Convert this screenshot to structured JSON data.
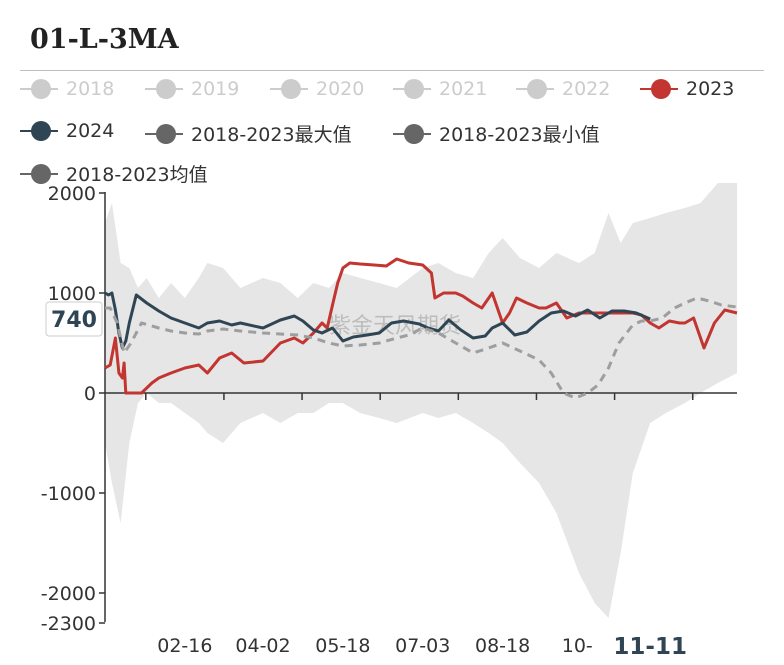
{
  "title": "01-L-3MA",
  "legend": [
    {
      "label": "2018",
      "color": "#cccccc",
      "active": false
    },
    {
      "label": "2019",
      "color": "#cccccc",
      "active": false
    },
    {
      "label": "2020",
      "color": "#cccccc",
      "active": false
    },
    {
      "label": "2021",
      "color": "#cccccc",
      "active": false
    },
    {
      "label": "2022",
      "color": "#cccccc",
      "active": false
    },
    {
      "label": "2023",
      "color": "#c23531",
      "active": true
    },
    {
      "label": "2024",
      "color": "#2f4554",
      "active": true
    },
    {
      "label": "2018-2023最大值",
      "color": "#666666",
      "active": true
    },
    {
      "label": "2018-2023最小值",
      "color": "#666666",
      "active": true
    },
    {
      "label": "2018-2023均值",
      "color": "#666666",
      "active": true
    }
  ],
  "watermark": "紫金天风期货",
  "chart_data": {
    "type": "line",
    "title": "01-L-3MA",
    "ylim": [
      -2300,
      2000
    ],
    "y_ticks": [
      "2000",
      "1000",
      "0",
      "-1000",
      "-2000",
      "-2300"
    ],
    "x_ticks": [
      "02-16",
      "04-02",
      "05-18",
      "07-03",
      "08-18",
      "10-"
    ],
    "x_range": [
      "01-01",
      "12-31"
    ],
    "highlight_x": "11-11",
    "pointer_value": "740",
    "band": {
      "name": "2018-2023最大值 / 2018-2023最小值",
      "color": "#e6e6e6",
      "x": [
        "01-01",
        "01-05",
        "01-10",
        "01-15",
        "01-20",
        "01-25",
        "02-01",
        "02-08",
        "02-16",
        "02-24",
        "03-01",
        "03-10",
        "03-20",
        "04-02",
        "04-12",
        "04-22",
        "05-01",
        "05-10",
        "05-18",
        "05-28",
        "06-08",
        "06-18",
        "07-03",
        "07-12",
        "07-22",
        "08-01",
        "08-10",
        "08-18",
        "08-28",
        "09-08",
        "09-18",
        "10-01",
        "10-10",
        "10-18",
        "10-25",
        "11-01",
        "11-11",
        "11-20",
        "12-01",
        "12-10",
        "12-20",
        "12-31"
      ],
      "upper": [
        1700,
        1900,
        1300,
        1250,
        1050,
        1150,
        950,
        1100,
        950,
        1150,
        1300,
        1250,
        1050,
        1150,
        1100,
        950,
        1100,
        1050,
        1200,
        1150,
        1100,
        1050,
        1250,
        1300,
        1200,
        1150,
        1400,
        1550,
        1350,
        1250,
        1400,
        1300,
        1400,
        1800,
        1500,
        1700,
        1750,
        1800,
        1850,
        1900,
        2100,
        2100
      ],
      "lower": [
        -500,
        -900,
        -1300,
        -500,
        -100,
        0,
        -100,
        -100,
        -200,
        -300,
        -400,
        -500,
        -300,
        -200,
        -300,
        -200,
        -200,
        -100,
        -100,
        -200,
        -250,
        -300,
        -200,
        -250,
        -200,
        -300,
        -400,
        -500,
        -700,
        -900,
        -1200,
        -1800,
        -2100,
        -2250,
        -1600,
        -800,
        -300,
        -200,
        -100,
        0,
        100,
        200
      ]
    },
    "series": [
      {
        "name": "2023",
        "color": "#c23531",
        "width": 3,
        "dash": false,
        "x": [
          "01-01",
          "01-04",
          "01-07",
          "01-09",
          "01-11",
          "01-12",
          "01-13",
          "01-16",
          "01-22",
          "01-28",
          "02-01",
          "02-08",
          "02-16",
          "02-24",
          "03-01",
          "03-08",
          "03-15",
          "03-22",
          "04-02",
          "04-12",
          "04-20",
          "04-25",
          "05-01",
          "05-06",
          "05-09",
          "05-12",
          "05-15",
          "05-18",
          "05-22",
          "05-28",
          "06-05",
          "06-12",
          "06-18",
          "06-25",
          "07-03",
          "07-08",
          "07-10",
          "07-15",
          "07-22",
          "07-26",
          "08-01",
          "08-06",
          "08-12",
          "08-18",
          "08-22",
          "08-26",
          "09-01",
          "09-08",
          "09-12",
          "09-18",
          "09-24",
          "10-01",
          "10-08",
          "10-12",
          "10-18",
          "10-24",
          "11-01",
          "11-06",
          "11-11",
          "11-16",
          "11-22",
          "11-28",
          "12-01",
          "12-06",
          "12-12",
          "12-18",
          "12-24",
          "12-31"
        ],
        "values": [
          250,
          280,
          550,
          200,
          150,
          300,
          0,
          0,
          0,
          100,
          150,
          200,
          250,
          280,
          200,
          350,
          400,
          300,
          320,
          500,
          550,
          500,
          600,
          700,
          650,
          880,
          1100,
          1250,
          1300,
          1290,
          1280,
          1270,
          1340,
          1300,
          1280,
          1200,
          950,
          1000,
          1000,
          970,
          900,
          850,
          1000,
          700,
          800,
          950,
          900,
          850,
          850,
          900,
          750,
          800,
          800,
          800,
          800,
          800,
          800,
          780,
          700,
          650,
          720,
          700,
          700,
          750,
          450,
          700,
          830,
          800
        ]
      },
      {
        "name": "2024",
        "color": "#2f4554",
        "width": 3,
        "dash": false,
        "x": [
          "01-01",
          "01-03",
          "01-05",
          "01-07",
          "01-09",
          "01-11",
          "01-13",
          "01-15",
          "01-19",
          "01-25",
          "02-01",
          "02-08",
          "02-16",
          "02-24",
          "03-01",
          "03-08",
          "03-15",
          "03-20",
          "04-02",
          "04-12",
          "04-20",
          "04-25",
          "05-01",
          "05-06",
          "05-12",
          "05-18",
          "05-24",
          "06-01",
          "06-08",
          "06-15",
          "06-22",
          "07-01",
          "07-06",
          "07-12",
          "07-18",
          "07-25",
          "08-01",
          "08-08",
          "08-12",
          "08-18",
          "08-25",
          "09-01",
          "09-08",
          "09-15",
          "09-22",
          "09-29",
          "10-06",
          "10-13",
          "10-20",
          "10-27",
          "11-03",
          "11-11"
        ],
        "values": [
          1000,
          980,
          1000,
          830,
          600,
          450,
          520,
          700,
          980,
          900,
          820,
          750,
          700,
          650,
          700,
          720,
          680,
          700,
          650,
          730,
          770,
          720,
          630,
          600,
          650,
          520,
          560,
          580,
          600,
          700,
          720,
          690,
          650,
          620,
          730,
          630,
          550,
          570,
          650,
          700,
          580,
          610,
          720,
          800,
          820,
          770,
          830,
          750,
          820,
          820,
          800,
          740
        ]
      },
      {
        "name": "2018-2023均值",
        "color": "#9e9e9e",
        "width": 3,
        "dash": true,
        "x": [
          "01-01",
          "01-04",
          "01-08",
          "01-12",
          "01-16",
          "01-22",
          "02-01",
          "02-08",
          "02-16",
          "02-24",
          "03-01",
          "03-10",
          "03-20",
          "04-02",
          "04-12",
          "04-22",
          "05-01",
          "05-10",
          "05-18",
          "05-28",
          "06-08",
          "06-18",
          "06-25",
          "07-03",
          "07-12",
          "07-22",
          "08-01",
          "08-10",
          "08-18",
          "08-28",
          "09-08",
          "09-15",
          "09-22",
          "09-29",
          "10-06",
          "10-12",
          "10-18",
          "10-24",
          "11-01",
          "11-06",
          "11-11",
          "11-18",
          "11-25",
          "12-01",
          "12-08",
          "12-15",
          "12-22",
          "12-31"
        ],
        "values": [
          850,
          850,
          700,
          400,
          500,
          700,
          650,
          620,
          600,
          590,
          620,
          640,
          620,
          600,
          590,
          580,
          550,
          500,
          470,
          480,
          500,
          550,
          580,
          650,
          600,
          500,
          400,
          450,
          500,
          420,
          330,
          200,
          0,
          -50,
          0,
          80,
          250,
          500,
          680,
          720,
          720,
          750,
          850,
          900,
          950,
          920,
          880,
          860
        ]
      }
    ]
  }
}
